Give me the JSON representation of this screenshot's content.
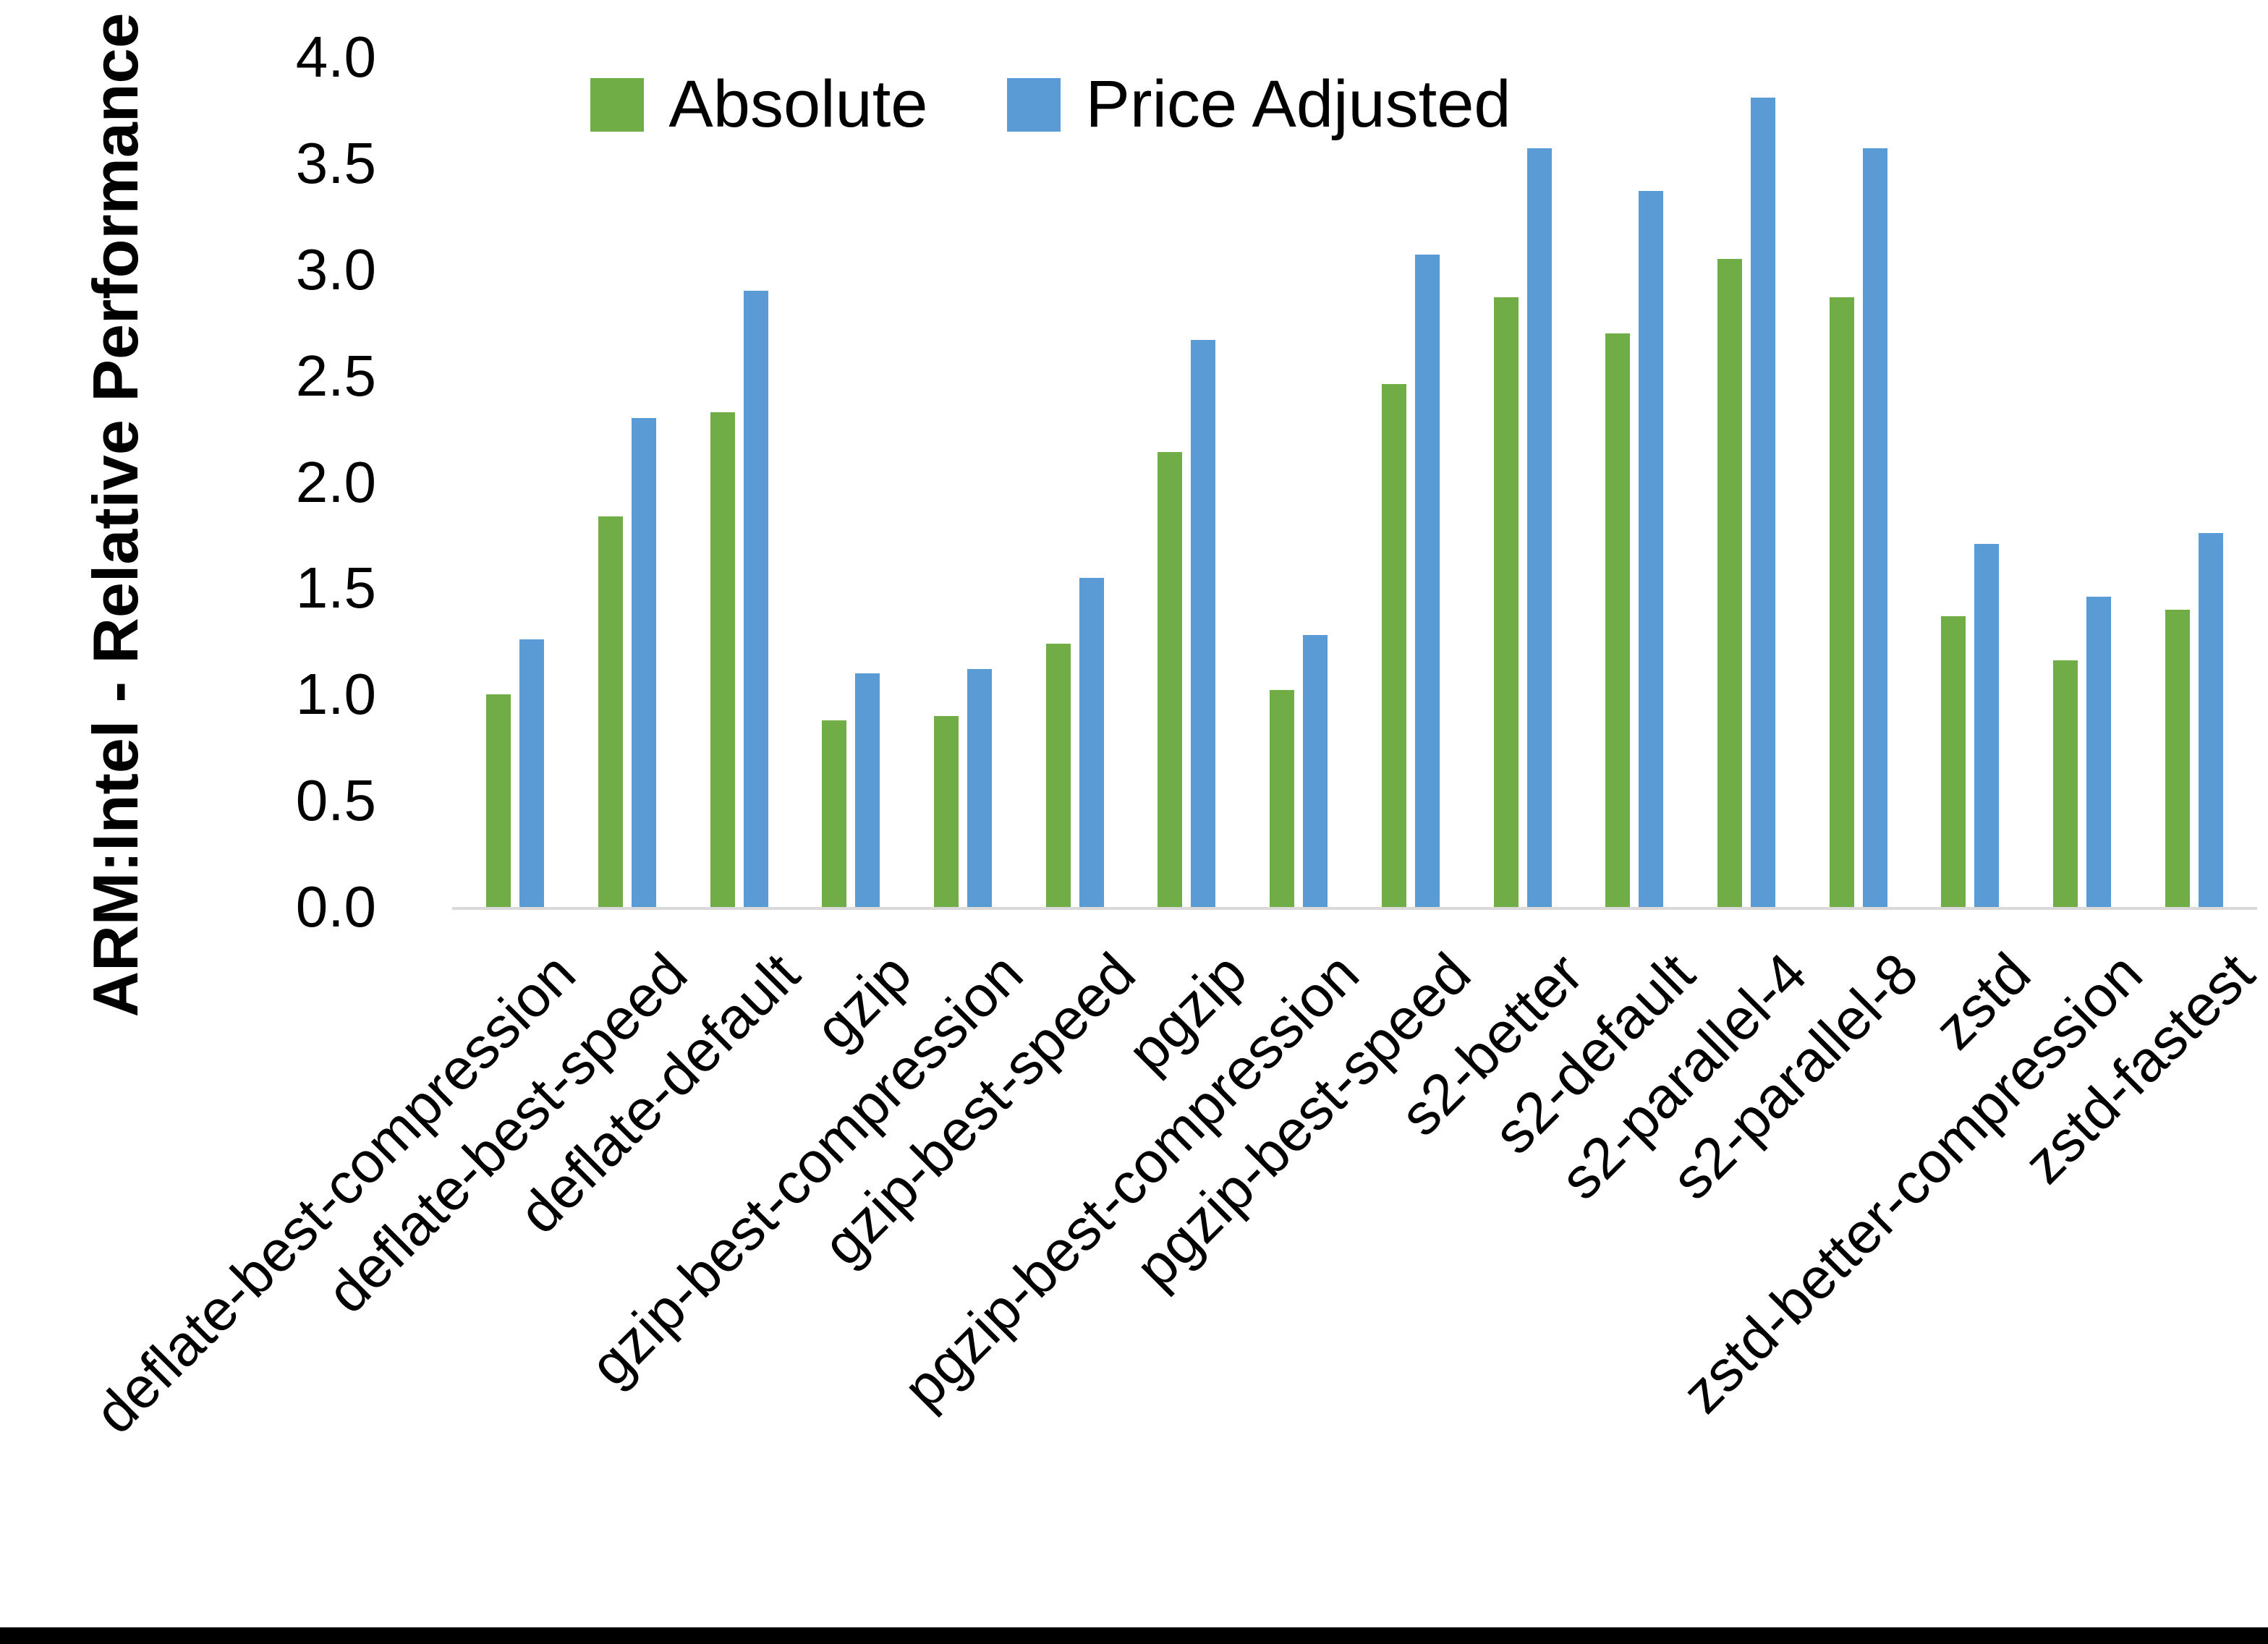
{
  "chart_data": {
    "type": "bar",
    "title": "",
    "xlabel": "",
    "ylabel": "ARM:Intel - Relative Performance",
    "ylim": [
      0.0,
      4.0
    ],
    "ytick_step": 0.5,
    "yticks": [
      "4.0",
      "3.5",
      "3.0",
      "2.5",
      "2.0",
      "1.5",
      "1.0",
      "0.5",
      "0.0"
    ],
    "grid": false,
    "legend_position": "top-center",
    "categories": [
      "deflate-best-compression",
      "deflate-best-speed",
      "deflate-default",
      "gzip",
      "gzip-best-compression",
      "gzip-best-speed",
      "pgzip",
      "pgzip-best-compression",
      "pgzip-best-speed",
      "s2-better",
      "s2-default",
      "s2-parallel-4",
      "s2-parallel-8",
      "zstd",
      "zstd-better-compression",
      "zstd-fastest"
    ],
    "series": [
      {
        "name": "Absolute",
        "color": "#70AD47",
        "values": [
          1.0,
          1.84,
          2.33,
          0.88,
          0.9,
          1.24,
          2.14,
          1.02,
          2.46,
          2.87,
          2.7,
          3.05,
          2.87,
          1.37,
          1.16,
          1.4
        ]
      },
      {
        "name": "Price Adjusted",
        "color": "#5B9BD5",
        "values": [
          1.26,
          2.3,
          2.9,
          1.1,
          1.12,
          1.55,
          2.67,
          1.28,
          3.07,
          3.57,
          3.37,
          3.81,
          3.57,
          1.71,
          1.46,
          1.76
        ]
      }
    ]
  },
  "colors": {
    "axis_line": "#d9d9d9",
    "text": "#000000",
    "background": "#ffffff",
    "bottom_border": "#000000"
  }
}
